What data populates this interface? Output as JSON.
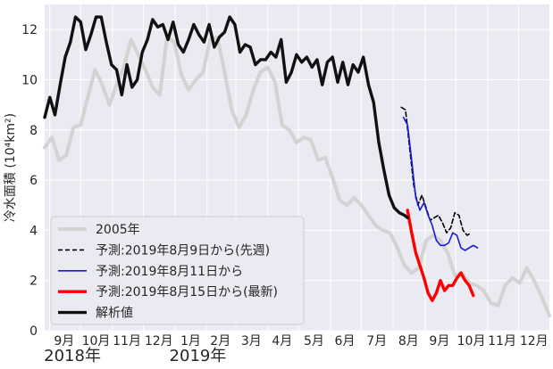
{
  "chart_data": {
    "type": "line",
    "title": "",
    "ylabel": "冷水面積 (10⁴km²)",
    "xlabel": "",
    "ylim": [
      0,
      13
    ],
    "xlim": [
      "2018-08-27",
      "2019-12-31"
    ],
    "y_ticks": [
      0,
      2,
      4,
      6,
      8,
      10,
      12
    ],
    "grid": true,
    "legend_position": "lower-left",
    "x_ticks": [
      {
        "label": "9月",
        "date": "2018-09-15"
      },
      {
        "label": "10月",
        "date": "2018-10-16"
      },
      {
        "label": "11月",
        "date": "2018-11-15"
      },
      {
        "label": "12月",
        "date": "2018-12-16"
      },
      {
        "label": "1月",
        "date": "2019-01-16"
      },
      {
        "label": "2月",
        "date": "2019-02-14"
      },
      {
        "label": "3月",
        "date": "2019-03-16"
      },
      {
        "label": "4月",
        "date": "2019-04-15"
      },
      {
        "label": "5月",
        "date": "2019-05-16"
      },
      {
        "label": "6月",
        "date": "2019-06-15"
      },
      {
        "label": "7月",
        "date": "2019-07-16"
      },
      {
        "label": "8月",
        "date": "2019-08-16"
      },
      {
        "label": "9月",
        "date": "2019-09-15"
      },
      {
        "label": "10月",
        "date": "2019-10-16"
      },
      {
        "label": "11月",
        "date": "2019-11-15"
      },
      {
        "label": "12月",
        "date": "2019-12-16"
      }
    ],
    "year_labels": [
      {
        "label": "2018年",
        "date": "2018-09-23"
      },
      {
        "label": "2019年",
        "date": "2019-01-23"
      }
    ],
    "series": [
      {
        "name": "2005年",
        "color": "#d3d3d3",
        "dash": "",
        "x": [
          "2018-08-27",
          "2018-09-03",
          "2018-09-10",
          "2018-09-17",
          "2018-09-24",
          "2018-10-01",
          "2018-10-08",
          "2018-10-15",
          "2018-10-22",
          "2018-10-29",
          "2018-11-05",
          "2018-11-12",
          "2018-11-19",
          "2018-11-26",
          "2018-12-03",
          "2018-12-10",
          "2018-12-17",
          "2018-12-24",
          "2018-12-31",
          "2019-01-07",
          "2019-01-14",
          "2019-01-21",
          "2019-01-28",
          "2019-02-04",
          "2019-02-11",
          "2019-02-18",
          "2019-02-25",
          "2019-03-04",
          "2019-03-11",
          "2019-03-18",
          "2019-03-25",
          "2019-04-01",
          "2019-04-08",
          "2019-04-15",
          "2019-04-22",
          "2019-04-29",
          "2019-05-06",
          "2019-05-13",
          "2019-05-20",
          "2019-05-27",
          "2019-06-03",
          "2019-06-10",
          "2019-06-17",
          "2019-06-24",
          "2019-07-01",
          "2019-07-08",
          "2019-07-15",
          "2019-07-22",
          "2019-07-29",
          "2019-08-05",
          "2019-08-12",
          "2019-08-19",
          "2019-08-26",
          "2019-09-02",
          "2019-09-09",
          "2019-09-16",
          "2019-09-23",
          "2019-09-30",
          "2019-10-07",
          "2019-10-14",
          "2019-10-21",
          "2019-10-28",
          "2019-11-04",
          "2019-11-11",
          "2019-11-18",
          "2019-11-25",
          "2019-12-02",
          "2019-12-09",
          "2019-12-16",
          "2019-12-23",
          "2019-12-31"
        ],
        "y": [
          7.3,
          7.7,
          6.8,
          7.0,
          8.1,
          8.2,
          9.3,
          10.4,
          9.8,
          9.0,
          9.8,
          10.5,
          11.6,
          11.0,
          10.4,
          9.7,
          9.4,
          11.7,
          11.5,
          10.2,
          9.6,
          10.0,
          10.3,
          11.6,
          11.7,
          10.3,
          8.8,
          8.1,
          8.6,
          9.6,
          10.3,
          10.5,
          9.9,
          8.2,
          8.0,
          7.5,
          7.7,
          7.6,
          6.8,
          6.9,
          6.1,
          5.2,
          5.0,
          5.3,
          5.0,
          4.6,
          4.2,
          4.0,
          3.9,
          3.3,
          2.6,
          2.3,
          2.5,
          3.6,
          3.8,
          3.6,
          3.1,
          2.2,
          2.3,
          1.9,
          1.8,
          1.6,
          1.1,
          1.0,
          1.8,
          2.1,
          1.9,
          2.5,
          2.0,
          1.4,
          0.6
        ]
      },
      {
        "name": "予測:2019年8月9日から(先週)",
        "color": "#000000",
        "dash": "5,3",
        "x": [
          "2019-08-09",
          "2019-08-13",
          "2019-08-17",
          "2019-08-21",
          "2019-08-25",
          "2019-08-29",
          "2019-09-02",
          "2019-09-06",
          "2019-09-10",
          "2019-09-14",
          "2019-09-18",
          "2019-09-22",
          "2019-09-26",
          "2019-09-30",
          "2019-10-04",
          "2019-10-08",
          "2019-10-12",
          "2019-10-16"
        ],
        "y": [
          8.9,
          8.8,
          7.3,
          5.8,
          5.0,
          5.4,
          4.9,
          4.4,
          4.5,
          4.6,
          4.3,
          3.9,
          4.1,
          4.7,
          4.6,
          4.0,
          3.8,
          3.9
        ]
      },
      {
        "name": "予測:2019年8月11日から",
        "color": "#1a1ad6",
        "dash": "",
        "x": [
          "2019-08-11",
          "2019-08-15",
          "2019-08-19",
          "2019-08-23",
          "2019-08-27",
          "2019-08-31",
          "2019-09-04",
          "2019-09-08",
          "2019-09-12",
          "2019-09-16",
          "2019-09-20",
          "2019-09-24",
          "2019-09-28",
          "2019-10-02",
          "2019-10-06",
          "2019-10-10",
          "2019-10-14",
          "2019-10-18",
          "2019-10-22"
        ],
        "y": [
          8.5,
          8.2,
          6.8,
          5.3,
          4.8,
          5.1,
          4.6,
          4.2,
          3.6,
          3.4,
          3.4,
          3.5,
          3.9,
          3.8,
          3.3,
          3.2,
          3.3,
          3.4,
          3.3
        ]
      },
      {
        "name": "予測:2019年8月15日から(最新)",
        "color": "#ff0000",
        "dash": "",
        "x": [
          "2019-08-15",
          "2019-08-19",
          "2019-08-23",
          "2019-08-27",
          "2019-08-31",
          "2019-09-04",
          "2019-09-08",
          "2019-09-12",
          "2019-09-16",
          "2019-09-20",
          "2019-09-24",
          "2019-09-28",
          "2019-10-02",
          "2019-10-06",
          "2019-10-10",
          "2019-10-14",
          "2019-10-18"
        ],
        "y": [
          4.8,
          3.9,
          3.1,
          2.6,
          2.1,
          1.5,
          1.2,
          1.5,
          2.0,
          1.6,
          1.8,
          1.8,
          2.1,
          2.3,
          2.0,
          1.8,
          1.4
        ]
      },
      {
        "name": "解析値",
        "color": "#111111",
        "dash": "",
        "x": [
          "2018-08-27",
          "2018-09-01",
          "2018-09-06",
          "2018-09-11",
          "2018-09-16",
          "2018-09-21",
          "2018-09-26",
          "2018-10-01",
          "2018-10-06",
          "2018-10-11",
          "2018-10-16",
          "2018-10-21",
          "2018-10-26",
          "2018-10-31",
          "2018-11-05",
          "2018-11-10",
          "2018-11-15",
          "2018-11-20",
          "2018-11-25",
          "2018-11-30",
          "2018-12-05",
          "2018-12-10",
          "2018-12-15",
          "2018-12-20",
          "2018-12-25",
          "2018-12-30",
          "2019-01-04",
          "2019-01-09",
          "2019-01-14",
          "2019-01-19",
          "2019-01-24",
          "2019-01-29",
          "2019-02-03",
          "2019-02-08",
          "2019-02-13",
          "2019-02-18",
          "2019-02-23",
          "2019-02-28",
          "2019-03-05",
          "2019-03-10",
          "2019-03-15",
          "2019-03-20",
          "2019-03-25",
          "2019-03-30",
          "2019-04-04",
          "2019-04-09",
          "2019-04-14",
          "2019-04-19",
          "2019-04-24",
          "2019-04-29",
          "2019-05-04",
          "2019-05-09",
          "2019-05-14",
          "2019-05-19",
          "2019-05-24",
          "2019-05-29",
          "2019-06-03",
          "2019-06-08",
          "2019-06-13",
          "2019-06-18",
          "2019-06-23",
          "2019-06-28",
          "2019-07-03",
          "2019-07-08",
          "2019-07-13",
          "2019-07-18",
          "2019-07-23",
          "2019-07-28",
          "2019-08-02",
          "2019-08-07",
          "2019-08-12",
          "2019-08-15"
        ],
        "y": [
          8.5,
          9.3,
          8.6,
          9.8,
          10.9,
          11.5,
          12.5,
          12.3,
          11.2,
          11.8,
          12.5,
          12.5,
          11.5,
          10.6,
          10.4,
          9.4,
          10.6,
          9.7,
          10.0,
          11.1,
          11.6,
          12.4,
          12.1,
          12.2,
          11.6,
          12.3,
          11.4,
          11.1,
          11.6,
          12.2,
          11.8,
          11.5,
          12.2,
          11.3,
          11.7,
          11.9,
          12.5,
          12.2,
          11.1,
          11.4,
          11.3,
          10.6,
          10.8,
          10.8,
          11.1,
          10.9,
          11.6,
          9.9,
          10.3,
          11.0,
          10.7,
          10.9,
          10.5,
          10.8,
          9.8,
          10.7,
          10.9,
          9.9,
          10.7,
          9.8,
          10.6,
          10.3,
          10.9,
          9.8,
          9.1,
          7.5,
          6.4,
          5.4,
          4.9,
          4.7,
          4.6,
          4.5
        ]
      }
    ]
  }
}
